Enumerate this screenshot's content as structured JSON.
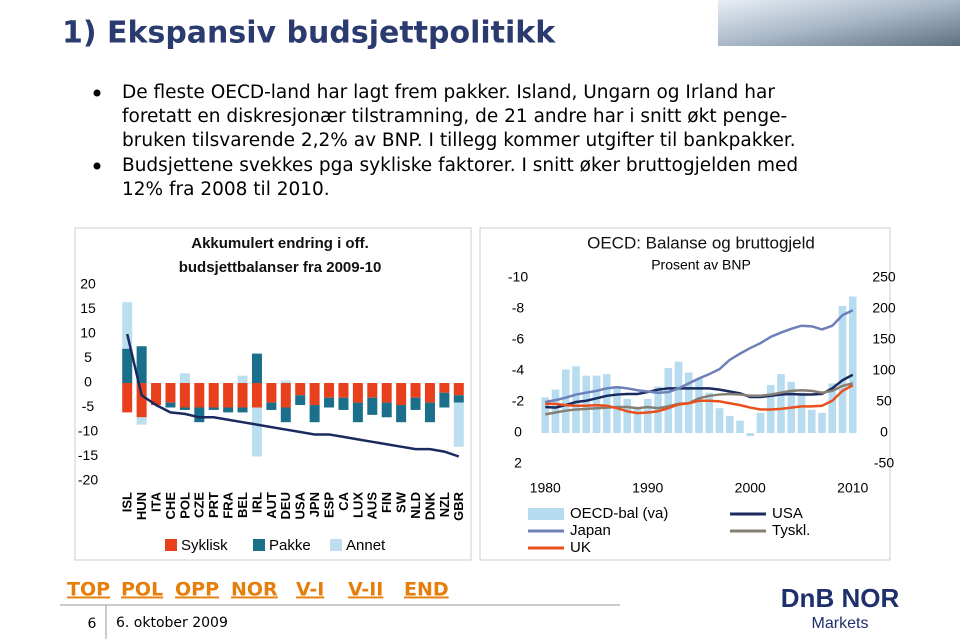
{
  "title": "1) Ekspansiv budsjettpolitikk",
  "bullets": [
    [
      "De fleste OECD-land har lagt frem pakker. Island, Ungarn og Irland har",
      "foretatt en diskresjonær tilstramning, de 21 andre har i snitt økt penge-",
      "bruken tilsvarende 2,2% av BNP. I tillegg kommer utgifter til bankpakker."
    ],
    [
      "Budsjettene svekkes pga sykliske faktorer. I snitt øker bruttogjelden med",
      "12% fra 2008 til 2010."
    ]
  ],
  "nav": [
    "TOP",
    "POL",
    "OPP",
    "NOR",
    "V-I",
    "V-II",
    "END"
  ],
  "footer": {
    "page": "6",
    "date": "6. oktober 2009",
    "logo": "DnB NOR",
    "logo_sub": "Markets"
  },
  "chart_data": [
    {
      "type": "bar",
      "stacked": true,
      "title_lines": [
        "Akkumulert endring i off.",
        "budsjettbalanser fra 2009-10"
      ],
      "categories": [
        "ISL",
        "HUN",
        "ITA",
        "CHE",
        "POL",
        "CZE",
        "PRT",
        "FRA",
        "BEL",
        "IRL",
        "AUT",
        "DEU",
        "USA",
        "JPN",
        "ESP",
        "CA",
        "LUX",
        "AUS",
        "FIN",
        "SW",
        "NLD",
        "DNK",
        "NZL",
        "GBR"
      ],
      "series": [
        {
          "name": "Syklisk",
          "color": "#e8401c",
          "values": [
            -6,
            -7,
            -4.5,
            -4,
            -5,
            -5,
            -5,
            -5,
            -5,
            -5,
            -4,
            -5,
            -2.5,
            -4.5,
            -3,
            -3,
            -4,
            -3,
            -4,
            -4.5,
            -3,
            -4,
            -2,
            -2.5
          ]
        },
        {
          "name": "Pakke",
          "color": "#1a6f8a",
          "values": [
            7,
            7.5,
            0,
            -1,
            -0.5,
            -3,
            -0.5,
            -1,
            -1,
            6,
            -1.5,
            -3,
            -2,
            -3.5,
            -2,
            -2.5,
            -4,
            -3.5,
            -3,
            -3.5,
            -2.5,
            -4,
            -3,
            -1.5
          ]
        },
        {
          "name": "Annet",
          "color": "#bcdff0",
          "values": [
            9.5,
            -1.5,
            0,
            0,
            2,
            0,
            0,
            0,
            1.5,
            -10,
            0,
            0.5,
            0,
            0,
            0,
            0,
            0,
            0,
            0,
            0,
            0,
            0,
            0,
            -9
          ]
        }
      ],
      "line": {
        "color": "#1b2a5e",
        "values": [
          10,
          -2.5,
          -4.5,
          -6,
          -6.3,
          -7,
          -7,
          -7.5,
          -8,
          -8.5,
          -9,
          -9.5,
          -10,
          -10.5,
          -10.5,
          -11,
          -11.5,
          -12,
          -12.5,
          -13,
          -13.5,
          -13.5,
          -14,
          -15
        ]
      },
      "ylim": [
        -20,
        20
      ],
      "yticks": [
        -20,
        -15,
        -10,
        -5,
        0,
        5,
        10,
        15,
        20
      ],
      "legend": "bottom"
    },
    {
      "type": "bar_line",
      "title": "OECD: Balanse og bruttogjeld",
      "subtitle": "Prosent av BNP",
      "x": [
        1980,
        1981,
        1982,
        1983,
        1984,
        1985,
        1986,
        1987,
        1988,
        1989,
        1990,
        1991,
        1992,
        1993,
        1994,
        1995,
        1996,
        1997,
        1998,
        1999,
        2000,
        2001,
        2002,
        2003,
        2004,
        2005,
        2006,
        2007,
        2008,
        2009,
        2010
      ],
      "xlim": [
        1979,
        2011
      ],
      "xticks": [
        1980,
        1990,
        2000,
        2010
      ],
      "series": [
        {
          "name": "OECD-bal (va)",
          "type": "bar",
          "color": "#b7dcf0",
          "values": [
            -2.3,
            -2.8,
            -4.1,
            -4.3,
            -3.7,
            -3.7,
            -3.8,
            -3.0,
            -2.2,
            -1.6,
            -2.2,
            -3.0,
            -4.2,
            -4.6,
            -3.9,
            -3.5,
            -2.6,
            -1.6,
            -1.1,
            -0.8,
            0.2,
            -1.3,
            -3.1,
            -3.8,
            -3.3,
            -2.6,
            -1.5,
            -1.3,
            -3.2,
            -8.2,
            -8.8
          ]
        },
        {
          "name": "USA",
          "type": "line",
          "axis": "y2",
          "color": "#1b2a5e",
          "values": [
            42,
            41,
            45,
            50,
            52,
            56,
            60,
            62,
            63,
            63,
            66,
            70,
            72,
            72,
            72,
            72,
            72,
            70,
            67,
            64,
            58,
            58,
            60,
            62,
            63,
            62,
            62,
            63,
            72,
            85,
            94
          ]
        },
        {
          "name": "Japan",
          "type": "line",
          "axis": "y2",
          "color": "#6d80b9",
          "values": [
            50,
            53,
            57,
            62,
            65,
            68,
            72,
            74,
            72,
            69,
            67,
            65,
            66,
            72,
            80,
            88,
            95,
            103,
            118,
            128,
            137,
            145,
            155,
            162,
            168,
            173,
            172,
            167,
            173,
            190,
            198
          ]
        },
        {
          "name": "Tyskl.",
          "type": "line",
          "axis": "y2",
          "color": "#857e72",
          "values": [
            30,
            33,
            36,
            38,
            39,
            40,
            41,
            42,
            42,
            40,
            42,
            40,
            43,
            47,
            48,
            56,
            60,
            62,
            63,
            62,
            60,
            60,
            62,
            65,
            68,
            69,
            68,
            65,
            68,
            76,
            80
          ]
        },
        {
          "name": "UK",
          "type": "line",
          "axis": "y2",
          "color": "#e8501e",
          "values": [
            47,
            47,
            45,
            44,
            44,
            45,
            44,
            40,
            35,
            32,
            33,
            35,
            40,
            46,
            48,
            52,
            52,
            51,
            48,
            45,
            41,
            38,
            38,
            39,
            41,
            43,
            43,
            44,
            52,
            68,
            77
          ]
        }
      ],
      "ylim": [
        2,
        -10
      ],
      "yticks": [
        -10,
        -8,
        -6,
        -4,
        -2,
        0,
        2
      ],
      "y2lim": [
        -50,
        250
      ],
      "y2ticks": [
        -50,
        0,
        50,
        100,
        150,
        200,
        250
      ],
      "legend": "bottom"
    }
  ]
}
